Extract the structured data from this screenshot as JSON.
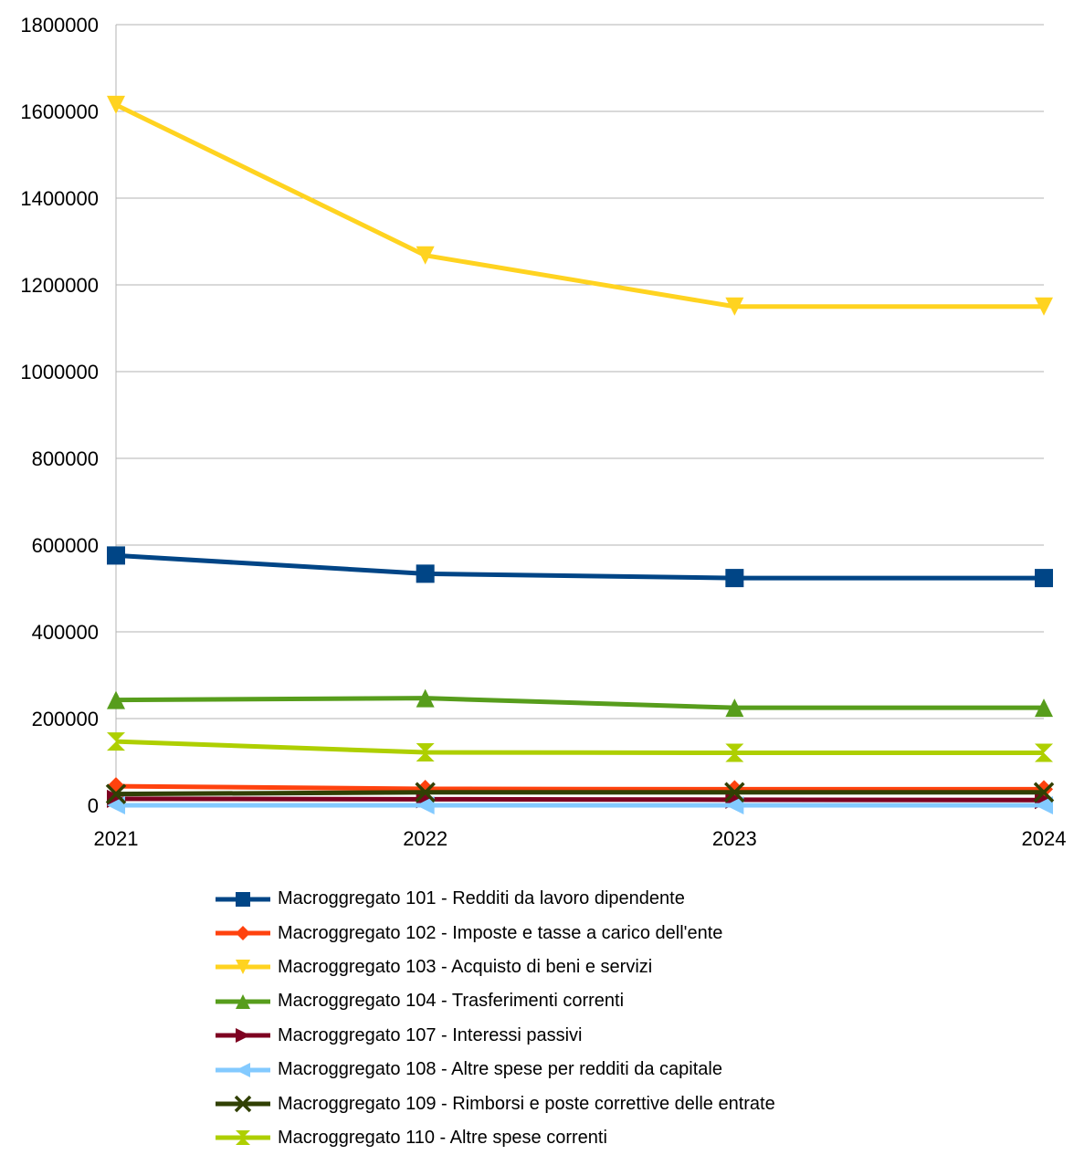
{
  "chart_data": {
    "type": "line",
    "title": "",
    "xlabel": "",
    "ylabel": "",
    "categories": [
      "2021",
      "2022",
      "2023",
      "2024"
    ],
    "ylim": [
      0,
      1800000
    ],
    "yticks": [
      0,
      200000,
      400000,
      600000,
      800000,
      1000000,
      1200000,
      1400000,
      1600000,
      1800000
    ],
    "grid": "horizontal",
    "legend_position": "bottom",
    "series": [
      {
        "name": "Macroggregato 101 - Redditi da lavoro dipendente",
        "values": [
          576000,
          534000,
          524000,
          524000
        ],
        "color": "#004586",
        "marker": "square"
      },
      {
        "name": "Macroggregato 102 - Imposte e tasse a carico dell'ente",
        "values": [
          44000,
          38000,
          37000,
          37000
        ],
        "color": "#ff420e",
        "marker": "diamond"
      },
      {
        "name": "Macroggregato 103 - Acquisto di beni e servizi",
        "values": [
          1615000,
          1268000,
          1150000,
          1150000
        ],
        "color": "#ffd320",
        "marker": "triangle-down"
      },
      {
        "name": "Macroggregato 104 - Trasferimenti correnti",
        "values": [
          243000,
          247000,
          225000,
          225000
        ],
        "color": "#579d1c",
        "marker": "triangle-up"
      },
      {
        "name": "Macroggregato 107 - Interessi passivi",
        "values": [
          15000,
          14000,
          13000,
          12000
        ],
        "color": "#7e0021",
        "marker": "triangle-right"
      },
      {
        "name": "Macroggregato 108 - Altre spese per redditi da capitale",
        "values": [
          0,
          0,
          0,
          0
        ],
        "color": "#83caff",
        "marker": "triangle-left"
      },
      {
        "name": "Macroggregato 109 - Rimborsi e poste correttive delle entrate",
        "values": [
          26000,
          30000,
          30000,
          30000
        ],
        "color": "#314004",
        "marker": "x"
      },
      {
        "name": "Macroggregato 110 - Altre spese correnti",
        "values": [
          147000,
          122000,
          121000,
          121000
        ],
        "color": "#aecf00",
        "marker": "hourglass"
      }
    ]
  }
}
